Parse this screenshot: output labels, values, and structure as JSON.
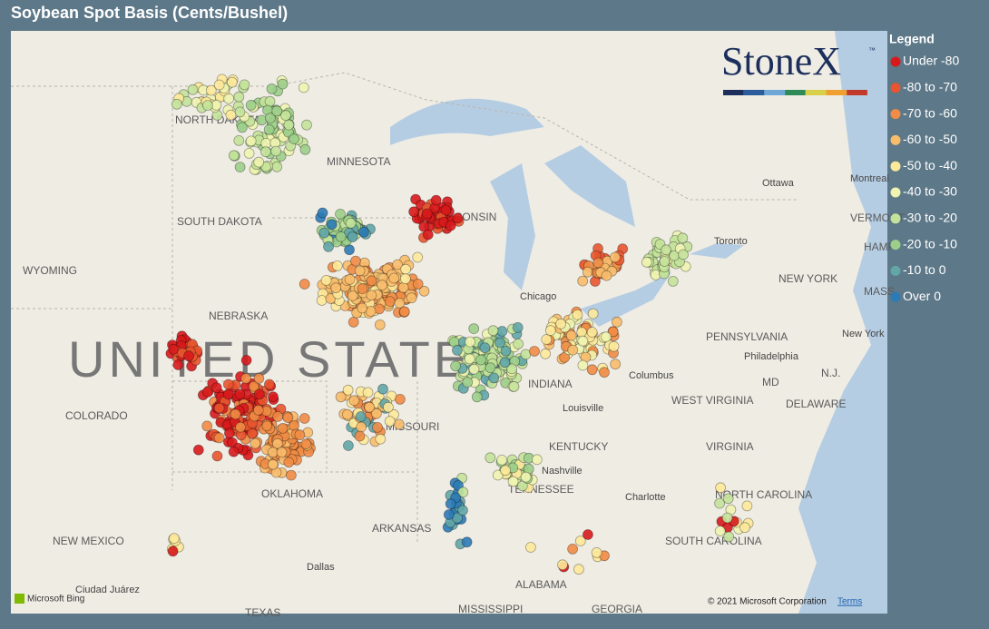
{
  "title": "Soybean Spot Basis (Cents/Bushel)",
  "legend": {
    "title": "Legend",
    "items": [
      {
        "label": "Under -80",
        "color": "#d7191c"
      },
      {
        "label": "-80 to -70",
        "color": "#e8552f"
      },
      {
        "label": "-70 to -60",
        "color": "#f08c45"
      },
      {
        "label": "-60 to -50",
        "color": "#f8bd6b"
      },
      {
        "label": "-50 to -40",
        "color": "#fde99a"
      },
      {
        "label": "-40 to -30",
        "color": "#f0f4b0"
      },
      {
        "label": "-30 to -20",
        "color": "#c4e39a"
      },
      {
        "label": "-20 to -10",
        "color": "#9ccf8a"
      },
      {
        "label": "-10 to 0",
        "color": "#62a6a8"
      },
      {
        "label": "Over 0",
        "color": "#2c7bb6"
      }
    ]
  },
  "logo": {
    "text": "StoneX",
    "mark": "™"
  },
  "map_labels": [
    "NORTH DAKOTA",
    "MINNESOTA",
    "SOUTH DAKOTA",
    "WYOMING",
    "WISCONSIN",
    "NEBRASKA",
    "UNITED STATES",
    "COLORADO",
    "MISSOURI",
    "OKLAHOMA",
    "NEW MEXICO",
    "ARKANSAS",
    "TENNESSEE",
    "KENTUCKY",
    "INDIANA",
    "WEST VIRGINIA",
    "VIRGINIA",
    "PENNSYLVANIA",
    "NEW YORK",
    "NORTH CAROLINA",
    "SOUTH CAROLINA",
    "ALABAMA",
    "MISSISSIPPI",
    "GEORGIA",
    "TEXAS",
    "VERMONT",
    "MD",
    "DELAWARE",
    "N.J.",
    "MASS.",
    "HAMP"
  ],
  "cities": [
    "Chicago",
    "Louisville",
    "Nashville",
    "Columbus",
    "Philadelphia",
    "Toronto",
    "Ottawa",
    "Montreal",
    "Charlotte",
    "Dallas",
    "Ciudad Juárez",
    "New York"
  ],
  "footer": {
    "attribution": "Microsoft Bing",
    "copyright": "© 2021 Microsoft Corporation",
    "terms": "Terms"
  }
}
